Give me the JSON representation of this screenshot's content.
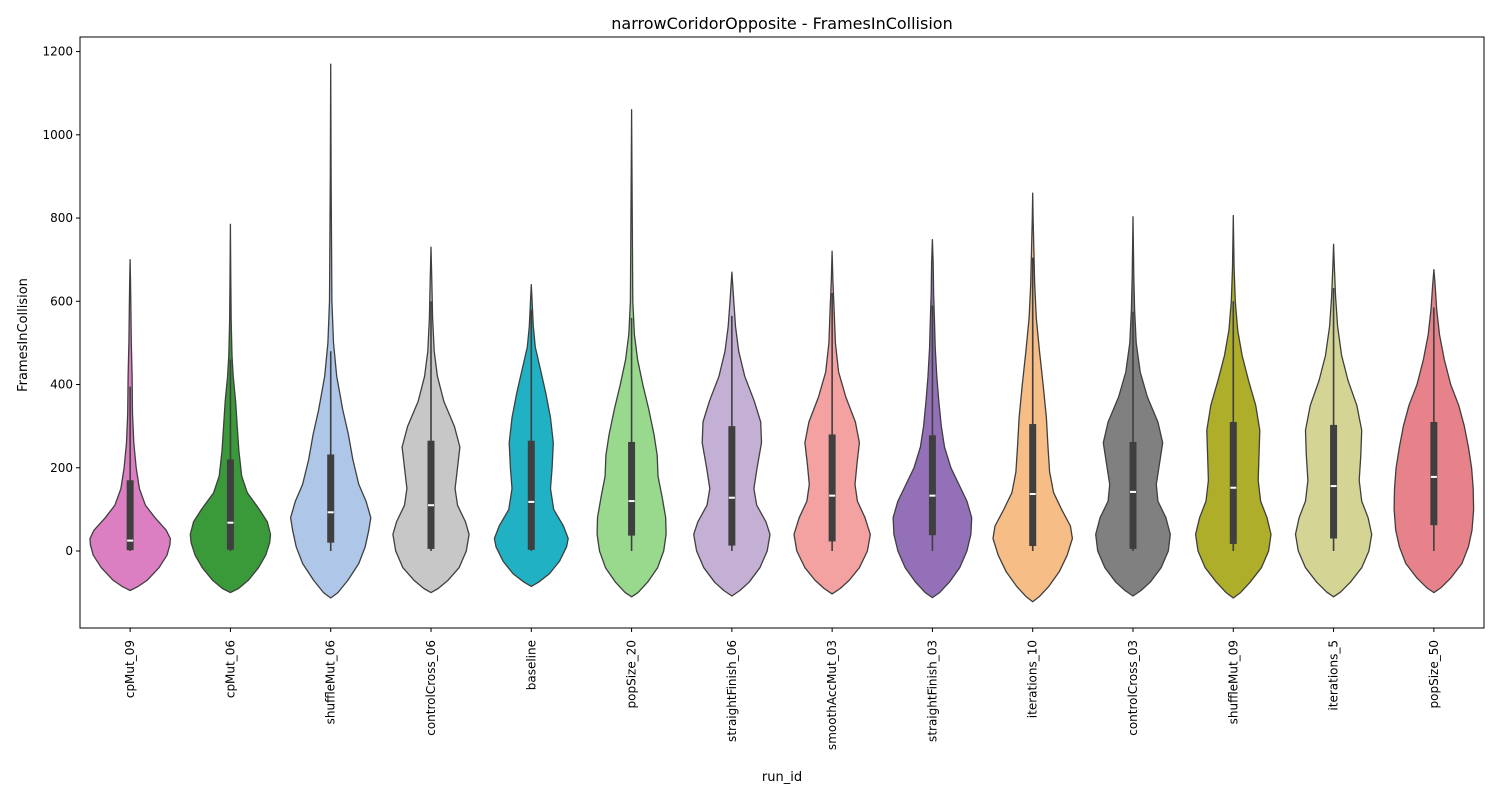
{
  "chart_data": {
    "type": "violin",
    "title": "narrowCoridorOpposite - FramesInCollision",
    "xlabel": "run_id",
    "ylabel": "FramesInCollision",
    "ylim": [
      -185,
      1235
    ],
    "yticks": [
      0,
      200,
      400,
      600,
      800,
      1000,
      1200
    ],
    "grid": false,
    "legend": "none",
    "categories": [
      "cpMut_09",
      "cpMut_06",
      "shuffleMut_06",
      "controlCross_06",
      "baseline",
      "popSize_20",
      "straightFinish_06",
      "smoothAccMut_03",
      "straightFinish_03",
      "iterations_10",
      "controlCross_03",
      "shuffleMut_09",
      "iterations_5",
      "popSize_50"
    ],
    "series": [
      {
        "run_id": "cpMut_09",
        "color": "#dc7fc2",
        "kde_min": -95,
        "kde_max": 700,
        "whisker_low": 0,
        "q1": 2,
        "median": 25,
        "q3": 170,
        "whisker_high": 395,
        "profile": [
          [
            -95,
            0.0
          ],
          [
            -85,
            0.2
          ],
          [
            -70,
            0.43
          ],
          [
            -40,
            0.72
          ],
          [
            -10,
            0.92
          ],
          [
            15,
            0.99
          ],
          [
            30,
            1.0
          ],
          [
            50,
            0.9
          ],
          [
            80,
            0.62
          ],
          [
            110,
            0.38
          ],
          [
            150,
            0.23
          ],
          [
            200,
            0.15
          ],
          [
            260,
            0.09
          ],
          [
            330,
            0.06
          ],
          [
            420,
            0.05
          ],
          [
            500,
            0.03
          ],
          [
            580,
            0.02
          ],
          [
            650,
            0.01
          ],
          [
            700,
            0.0
          ]
        ]
      },
      {
        "run_id": "cpMut_06",
        "color": "#3a9a3a",
        "kde_min": -100,
        "kde_max": 785,
        "whisker_low": 0,
        "q1": 3,
        "median": 68,
        "q3": 220,
        "whisker_high": 460,
        "profile": [
          [
            -100,
            0.0
          ],
          [
            -90,
            0.2
          ],
          [
            -70,
            0.45
          ],
          [
            -40,
            0.7
          ],
          [
            -10,
            0.88
          ],
          [
            20,
            0.98
          ],
          [
            40,
            1.0
          ],
          [
            70,
            0.92
          ],
          [
            100,
            0.72
          ],
          [
            140,
            0.42
          ],
          [
            180,
            0.28
          ],
          [
            240,
            0.21
          ],
          [
            300,
            0.17
          ],
          [
            360,
            0.13
          ],
          [
            420,
            0.07
          ],
          [
            470,
            0.04
          ],
          [
            550,
            0.02
          ],
          [
            650,
            0.01
          ],
          [
            785,
            0.0
          ]
        ]
      },
      {
        "run_id": "shuffleMut_06",
        "color": "#aec7e8",
        "kde_min": -113,
        "kde_max": 1170,
        "whisker_low": 0,
        "q1": 20,
        "median": 93,
        "q3": 232,
        "whisker_high": 480,
        "profile": [
          [
            -113,
            0.0
          ],
          [
            -100,
            0.18
          ],
          [
            -70,
            0.43
          ],
          [
            -30,
            0.7
          ],
          [
            10,
            0.86
          ],
          [
            50,
            0.95
          ],
          [
            80,
            1.0
          ],
          [
            120,
            0.88
          ],
          [
            160,
            0.7
          ],
          [
            220,
            0.55
          ],
          [
            280,
            0.44
          ],
          [
            340,
            0.3
          ],
          [
            420,
            0.15
          ],
          [
            500,
            0.07
          ],
          [
            600,
            0.03
          ],
          [
            750,
            0.02
          ],
          [
            900,
            0.01
          ],
          [
            1170,
            0.0
          ]
        ]
      },
      {
        "run_id": "controlCross_06",
        "color": "#c7c7c7",
        "kde_min": -100,
        "kde_max": 730,
        "whisker_low": 0,
        "q1": 5,
        "median": 110,
        "q3": 265,
        "whisker_high": 600,
        "profile": [
          [
            -100,
            0.0
          ],
          [
            -90,
            0.18
          ],
          [
            -70,
            0.43
          ],
          [
            -40,
            0.7
          ],
          [
            0,
            0.88
          ],
          [
            40,
            0.95
          ],
          [
            70,
            0.86
          ],
          [
            110,
            0.66
          ],
          [
            150,
            0.6
          ],
          [
            200,
            0.66
          ],
          [
            250,
            0.72
          ],
          [
            300,
            0.58
          ],
          [
            360,
            0.32
          ],
          [
            420,
            0.16
          ],
          [
            480,
            0.08
          ],
          [
            560,
            0.04
          ],
          [
            650,
            0.02
          ],
          [
            730,
            0.0
          ]
        ]
      },
      {
        "run_id": "baseline",
        "color": "#20b2c4",
        "kde_min": -85,
        "kde_max": 640,
        "whisker_low": 0,
        "q1": 3,
        "median": 118,
        "q3": 265,
        "whisker_high": 580,
        "profile": [
          [
            -85,
            0.0
          ],
          [
            -75,
            0.18
          ],
          [
            -55,
            0.45
          ],
          [
            -25,
            0.7
          ],
          [
            10,
            0.88
          ],
          [
            30,
            0.92
          ],
          [
            60,
            0.8
          ],
          [
            100,
            0.56
          ],
          [
            150,
            0.48
          ],
          [
            200,
            0.52
          ],
          [
            260,
            0.55
          ],
          [
            320,
            0.48
          ],
          [
            380,
            0.36
          ],
          [
            440,
            0.22
          ],
          [
            490,
            0.1
          ],
          [
            540,
            0.05
          ],
          [
            600,
            0.02
          ],
          [
            640,
            0.0
          ]
        ]
      },
      {
        "run_id": "popSize_20",
        "color": "#98d98e",
        "kde_min": -110,
        "kde_max": 1060,
        "whisker_low": 0,
        "q1": 37,
        "median": 120,
        "q3": 262,
        "whisker_high": 560,
        "profile": [
          [
            -110,
            0.0
          ],
          [
            -100,
            0.16
          ],
          [
            -75,
            0.4
          ],
          [
            -40,
            0.65
          ],
          [
            0,
            0.8
          ],
          [
            40,
            0.86
          ],
          [
            80,
            0.85
          ],
          [
            130,
            0.76
          ],
          [
            180,
            0.66
          ],
          [
            230,
            0.64
          ],
          [
            280,
            0.56
          ],
          [
            340,
            0.43
          ],
          [
            400,
            0.28
          ],
          [
            460,
            0.15
          ],
          [
            520,
            0.07
          ],
          [
            600,
            0.03
          ],
          [
            750,
            0.02
          ],
          [
            900,
            0.01
          ],
          [
            1060,
            0.0
          ]
        ]
      },
      {
        "run_id": "straightFinish_06",
        "color": "#c5b0d5",
        "kde_min": -108,
        "kde_max": 670,
        "whisker_low": 0,
        "q1": 13,
        "median": 128,
        "q3": 300,
        "whisker_high": 565,
        "profile": [
          [
            -108,
            0.0
          ],
          [
            -95,
            0.2
          ],
          [
            -75,
            0.43
          ],
          [
            -40,
            0.7
          ],
          [
            0,
            0.88
          ],
          [
            40,
            0.95
          ],
          [
            70,
            0.85
          ],
          [
            110,
            0.62
          ],
          [
            150,
            0.55
          ],
          [
            200,
            0.63
          ],
          [
            260,
            0.74
          ],
          [
            310,
            0.72
          ],
          [
            360,
            0.56
          ],
          [
            420,
            0.32
          ],
          [
            480,
            0.17
          ],
          [
            540,
            0.09
          ],
          [
            610,
            0.04
          ],
          [
            670,
            0.0
          ]
        ]
      },
      {
        "run_id": "smoothAccMut_03",
        "color": "#f4a1a1",
        "kde_min": -103,
        "kde_max": 720,
        "whisker_low": 0,
        "q1": 23,
        "median": 133,
        "q3": 280,
        "whisker_high": 620,
        "profile": [
          [
            -103,
            0.0
          ],
          [
            -90,
            0.2
          ],
          [
            -70,
            0.43
          ],
          [
            -40,
            0.68
          ],
          [
            0,
            0.88
          ],
          [
            40,
            0.95
          ],
          [
            80,
            0.82
          ],
          [
            120,
            0.63
          ],
          [
            160,
            0.57
          ],
          [
            210,
            0.62
          ],
          [
            260,
            0.68
          ],
          [
            310,
            0.58
          ],
          [
            370,
            0.34
          ],
          [
            430,
            0.16
          ],
          [
            500,
            0.08
          ],
          [
            580,
            0.05
          ],
          [
            650,
            0.02
          ],
          [
            720,
            0.0
          ]
        ]
      },
      {
        "run_id": "straightFinish_03",
        "color": "#9370b8",
        "kde_min": -112,
        "kde_max": 748,
        "whisker_low": 0,
        "q1": 38,
        "median": 133,
        "q3": 278,
        "whisker_high": 590,
        "profile": [
          [
            -112,
            0.0
          ],
          [
            -100,
            0.18
          ],
          [
            -75,
            0.42
          ],
          [
            -40,
            0.68
          ],
          [
            0,
            0.86
          ],
          [
            40,
            0.96
          ],
          [
            80,
            0.98
          ],
          [
            120,
            0.86
          ],
          [
            160,
            0.66
          ],
          [
            200,
            0.46
          ],
          [
            250,
            0.3
          ],
          [
            300,
            0.22
          ],
          [
            360,
            0.16
          ],
          [
            420,
            0.11
          ],
          [
            490,
            0.07
          ],
          [
            560,
            0.05
          ],
          [
            620,
            0.03
          ],
          [
            690,
            0.02
          ],
          [
            748,
            0.0
          ]
        ]
      },
      {
        "run_id": "iterations_10",
        "color": "#f6bd86",
        "kde_min": -122,
        "kde_max": 860,
        "whisker_low": 0,
        "q1": 12,
        "median": 137,
        "q3": 305,
        "whisker_high": 705,
        "profile": [
          [
            -122,
            0.0
          ],
          [
            -110,
            0.16
          ],
          [
            -85,
            0.4
          ],
          [
            -50,
            0.66
          ],
          [
            -10,
            0.86
          ],
          [
            30,
            0.99
          ],
          [
            60,
            0.94
          ],
          [
            100,
            0.72
          ],
          [
            140,
            0.52
          ],
          [
            190,
            0.42
          ],
          [
            250,
            0.38
          ],
          [
            320,
            0.34
          ],
          [
            400,
            0.26
          ],
          [
            480,
            0.17
          ],
          [
            560,
            0.09
          ],
          [
            640,
            0.05
          ],
          [
            720,
            0.03
          ],
          [
            800,
            0.01
          ],
          [
            860,
            0.0
          ]
        ]
      },
      {
        "run_id": "controlCross_03",
        "color": "#808080",
        "kde_min": -108,
        "kde_max": 803,
        "whisker_low": 0,
        "q1": 5,
        "median": 142,
        "q3": 262,
        "whisker_high": 575,
        "profile": [
          [
            -108,
            0.0
          ],
          [
            -95,
            0.2
          ],
          [
            -75,
            0.43
          ],
          [
            -40,
            0.7
          ],
          [
            0,
            0.88
          ],
          [
            40,
            0.93
          ],
          [
            80,
            0.82
          ],
          [
            120,
            0.62
          ],
          [
            160,
            0.58
          ],
          [
            210,
            0.66
          ],
          [
            260,
            0.74
          ],
          [
            310,
            0.62
          ],
          [
            370,
            0.36
          ],
          [
            430,
            0.18
          ],
          [
            500,
            0.08
          ],
          [
            580,
            0.04
          ],
          [
            660,
            0.02
          ],
          [
            803,
            0.0
          ]
        ]
      },
      {
        "run_id": "shuffleMut_09",
        "color": "#aeae2a",
        "kde_min": -113,
        "kde_max": 806,
        "whisker_low": 0,
        "q1": 17,
        "median": 152,
        "q3": 310,
        "whisker_high": 600,
        "profile": [
          [
            -113,
            0.0
          ],
          [
            -100,
            0.18
          ],
          [
            -75,
            0.42
          ],
          [
            -40,
            0.7
          ],
          [
            0,
            0.88
          ],
          [
            40,
            0.94
          ],
          [
            80,
            0.84
          ],
          [
            120,
            0.68
          ],
          [
            170,
            0.62
          ],
          [
            230,
            0.64
          ],
          [
            290,
            0.66
          ],
          [
            350,
            0.56
          ],
          [
            410,
            0.38
          ],
          [
            470,
            0.22
          ],
          [
            530,
            0.11
          ],
          [
            600,
            0.05
          ],
          [
            680,
            0.02
          ],
          [
            806,
            0.0
          ]
        ]
      },
      {
        "run_id": "iterations_5",
        "color": "#d4d594",
        "kde_min": -110,
        "kde_max": 737,
        "whisker_low": 0,
        "q1": 30,
        "median": 156,
        "q3": 303,
        "whisker_high": 632,
        "profile": [
          [
            -110,
            0.0
          ],
          [
            -98,
            0.18
          ],
          [
            -75,
            0.42
          ],
          [
            -40,
            0.7
          ],
          [
            0,
            0.88
          ],
          [
            40,
            0.95
          ],
          [
            80,
            0.86
          ],
          [
            120,
            0.7
          ],
          [
            170,
            0.64
          ],
          [
            230,
            0.68
          ],
          [
            290,
            0.7
          ],
          [
            350,
            0.58
          ],
          [
            410,
            0.36
          ],
          [
            470,
            0.2
          ],
          [
            540,
            0.1
          ],
          [
            610,
            0.05
          ],
          [
            680,
            0.02
          ],
          [
            737,
            0.0
          ]
        ]
      },
      {
        "run_id": "popSize_50",
        "color": "#e8828a",
        "kde_min": -100,
        "kde_max": 676,
        "whisker_low": 0,
        "q1": 62,
        "median": 178,
        "q3": 310,
        "whisker_high": 585,
        "profile": [
          [
            -100,
            0.0
          ],
          [
            -88,
            0.18
          ],
          [
            -65,
            0.42
          ],
          [
            -30,
            0.7
          ],
          [
            10,
            0.86
          ],
          [
            50,
            0.95
          ],
          [
            100,
            0.99
          ],
          [
            150,
            0.98
          ],
          [
            200,
            0.94
          ],
          [
            250,
            0.86
          ],
          [
            300,
            0.76
          ],
          [
            350,
            0.62
          ],
          [
            400,
            0.42
          ],
          [
            460,
            0.26
          ],
          [
            520,
            0.14
          ],
          [
            580,
            0.07
          ],
          [
            640,
            0.03
          ],
          [
            676,
            0.0
          ]
        ]
      }
    ]
  }
}
